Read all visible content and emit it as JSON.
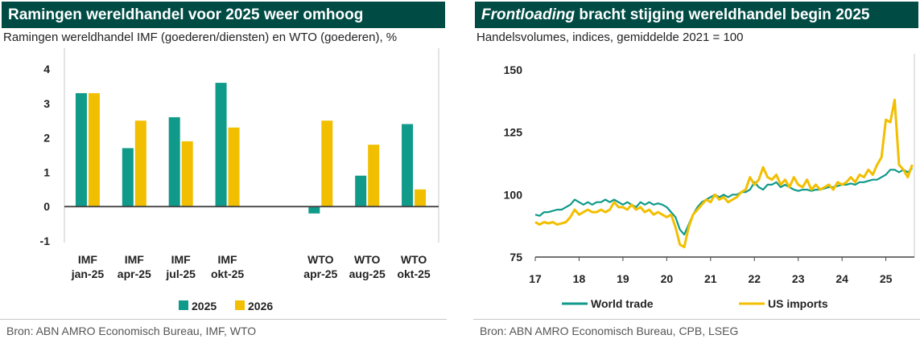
{
  "chart_data": [
    {
      "type": "bar",
      "title": "Ramingen wereldhandel voor 2025 weer omhoog",
      "subtitle": "Ramingen wereldhandel IMF (goederen/diensten) en WTO (goederen), %",
      "categories": [
        {
          "line1": "IMF",
          "line2": "jan-25"
        },
        {
          "line1": "IMF",
          "line2": "apr-25"
        },
        {
          "line1": "IMF",
          "line2": "jul-25"
        },
        {
          "line1": "IMF",
          "line2": "okt-25"
        },
        {
          "line1": "",
          "line2": ""
        },
        {
          "line1": "WTO",
          "line2": "apr-25"
        },
        {
          "line1": "WTO",
          "line2": "aug-25"
        },
        {
          "line1": "WTO",
          "line2": "okt-25"
        }
      ],
      "series": [
        {
          "name": "2025",
          "color": "#0f9a8a",
          "values": [
            3.3,
            1.7,
            2.6,
            3.6,
            null,
            -0.2,
            0.9,
            2.4
          ]
        },
        {
          "name": "2026",
          "color": "#f2bf00",
          "values": [
            3.3,
            2.5,
            1.9,
            2.3,
            null,
            2.5,
            1.8,
            0.5
          ]
        }
      ],
      "ylim": [
        -1,
        4
      ],
      "yticks": [
        "-1",
        "0",
        "1",
        "2",
        "3",
        "4"
      ],
      "legend_position": "bottom",
      "source": "Bron: ABN AMRO Economisch Bureau, IMF, WTO"
    },
    {
      "type": "line",
      "title_emph": "Frontloading",
      "title_rest": " bracht stijging wereldhandel begin 2025",
      "subtitle": "Handelsvolumes, indices, gemiddelde 2021 = 100",
      "xlim": [
        17,
        25.65
      ],
      "ylim": [
        75,
        150
      ],
      "xticks": [
        "17",
        "18",
        "19",
        "20",
        "21",
        "22",
        "23",
        "24",
        "25"
      ],
      "yticks": [
        "75",
        "100",
        "125",
        "150"
      ],
      "series": [
        {
          "name": "World trade",
          "color": "#0f9a8a",
          "points": [
            [
              17.0,
              92
            ],
            [
              17.1,
              91.5
            ],
            [
              17.2,
              93
            ],
            [
              17.3,
              93
            ],
            [
              17.4,
              93.5
            ],
            [
              17.5,
              94
            ],
            [
              17.6,
              94
            ],
            [
              17.7,
              95
            ],
            [
              17.8,
              96
            ],
            [
              17.9,
              98
            ],
            [
              18.0,
              97
            ],
            [
              18.1,
              96
            ],
            [
              18.2,
              97
            ],
            [
              18.3,
              96
            ],
            [
              18.4,
              97
            ],
            [
              18.5,
              97
            ],
            [
              18.6,
              98
            ],
            [
              18.7,
              97
            ],
            [
              18.8,
              98
            ],
            [
              18.9,
              97
            ],
            [
              19.0,
              96
            ],
            [
              19.1,
              97
            ],
            [
              19.2,
              96
            ],
            [
              19.3,
              95
            ],
            [
              19.4,
              97
            ],
            [
              19.5,
              96
            ],
            [
              19.6,
              97
            ],
            [
              19.7,
              96
            ],
            [
              19.8,
              96.5
            ],
            [
              19.9,
              96
            ],
            [
              20.0,
              95
            ],
            [
              20.1,
              93
            ],
            [
              20.2,
              91
            ],
            [
              20.3,
              86
            ],
            [
              20.4,
              84
            ],
            [
              20.5,
              88
            ],
            [
              20.6,
              92
            ],
            [
              20.7,
              95
            ],
            [
              20.8,
              97
            ],
            [
              20.9,
              98
            ],
            [
              21.0,
              99
            ],
            [
              21.1,
              100
            ],
            [
              21.2,
              99
            ],
            [
              21.3,
              100
            ],
            [
              21.4,
              99
            ],
            [
              21.5,
              100
            ],
            [
              21.6,
              100
            ],
            [
              21.7,
              101
            ],
            [
              21.8,
              101
            ],
            [
              21.9,
              102
            ],
            [
              22.0,
              105
            ],
            [
              22.1,
              103
            ],
            [
              22.2,
              102
            ],
            [
              22.3,
              104
            ],
            [
              22.4,
              104
            ],
            [
              22.5,
              105
            ],
            [
              22.6,
              103
            ],
            [
              22.7,
              104
            ],
            [
              22.8,
              103
            ],
            [
              22.9,
              102
            ],
            [
              23.0,
              101.5
            ],
            [
              23.1,
              102
            ],
            [
              23.2,
              102
            ],
            [
              23.3,
              101.5
            ],
            [
              23.4,
              102
            ],
            [
              23.5,
              102
            ],
            [
              23.6,
              102.5
            ],
            [
              23.7,
              103
            ],
            [
              23.8,
              103
            ],
            [
              23.9,
              103.5
            ],
            [
              24.0,
              104
            ],
            [
              24.1,
              104
            ],
            [
              24.2,
              104.5
            ],
            [
              24.3,
              104
            ],
            [
              24.4,
              105
            ],
            [
              24.5,
              105
            ],
            [
              24.6,
              105.5
            ],
            [
              24.7,
              106
            ],
            [
              24.8,
              106
            ],
            [
              24.9,
              107
            ],
            [
              25.0,
              108
            ],
            [
              25.1,
              110
            ],
            [
              25.2,
              110
            ],
            [
              25.3,
              109
            ],
            [
              25.4,
              110
            ],
            [
              25.5,
              109
            ],
            [
              25.6,
              110.5
            ]
          ]
        },
        {
          "name": "US imports",
          "color": "#f2bf00",
          "points": [
            [
              17.0,
              89
            ],
            [
              17.1,
              88
            ],
            [
              17.2,
              89
            ],
            [
              17.3,
              88.5
            ],
            [
              17.4,
              89
            ],
            [
              17.5,
              88
            ],
            [
              17.6,
              88.5
            ],
            [
              17.7,
              89
            ],
            [
              17.8,
              91
            ],
            [
              17.9,
              94
            ],
            [
              18.0,
              92
            ],
            [
              18.1,
              93
            ],
            [
              18.2,
              94
            ],
            [
              18.3,
              93
            ],
            [
              18.4,
              93
            ],
            [
              18.5,
              94
            ],
            [
              18.6,
              93
            ],
            [
              18.7,
              94
            ],
            [
              18.8,
              97
            ],
            [
              18.9,
              95
            ],
            [
              19.0,
              95
            ],
            [
              19.1,
              94
            ],
            [
              19.2,
              96
            ],
            [
              19.3,
              94
            ],
            [
              19.4,
              95
            ],
            [
              19.5,
              93
            ],
            [
              19.6,
              94
            ],
            [
              19.7,
              92
            ],
            [
              19.8,
              93
            ],
            [
              19.9,
              92
            ],
            [
              20.0,
              91
            ],
            [
              20.1,
              92
            ],
            [
              20.2,
              87
            ],
            [
              20.3,
              80
            ],
            [
              20.4,
              79
            ],
            [
              20.5,
              87
            ],
            [
              20.6,
              92
            ],
            [
              20.7,
              94
            ],
            [
              20.8,
              96
            ],
            [
              20.9,
              98
            ],
            [
              21.0,
              97
            ],
            [
              21.1,
              100
            ],
            [
              21.2,
              98
            ],
            [
              21.3,
              99
            ],
            [
              21.4,
              97
            ],
            [
              21.5,
              98
            ],
            [
              21.6,
              99
            ],
            [
              21.7,
              101
            ],
            [
              21.8,
              102
            ],
            [
              21.9,
              107
            ],
            [
              22.0,
              104
            ],
            [
              22.1,
              106
            ],
            [
              22.2,
              111
            ],
            [
              22.3,
              107
            ],
            [
              22.4,
              106
            ],
            [
              22.5,
              108
            ],
            [
              22.6,
              104
            ],
            [
              22.7,
              106
            ],
            [
              22.8,
              103
            ],
            [
              22.9,
              107
            ],
            [
              23.0,
              104
            ],
            [
              23.1,
              103
            ],
            [
              23.2,
              106
            ],
            [
              23.3,
              102
            ],
            [
              23.4,
              104
            ],
            [
              23.5,
              102
            ],
            [
              23.6,
              103
            ],
            [
              23.7,
              104
            ],
            [
              23.8,
              102
            ],
            [
              23.9,
              105
            ],
            [
              24.0,
              104
            ],
            [
              24.1,
              105
            ],
            [
              24.2,
              107
            ],
            [
              24.3,
              105
            ],
            [
              24.4,
              108
            ],
            [
              24.5,
              107
            ],
            [
              24.6,
              110
            ],
            [
              24.7,
              108
            ],
            [
              24.8,
              112
            ],
            [
              24.9,
              115
            ],
            [
              25.0,
              130
            ],
            [
              25.1,
              129
            ],
            [
              25.2,
              138
            ],
            [
              25.3,
              112
            ],
            [
              25.4,
              110
            ],
            [
              25.5,
              107
            ],
            [
              25.6,
              112
            ]
          ]
        }
      ],
      "legend_position": "bottom",
      "source": "Bron: ABN AMRO Economisch Bureau, CPB, LSEG"
    }
  ]
}
